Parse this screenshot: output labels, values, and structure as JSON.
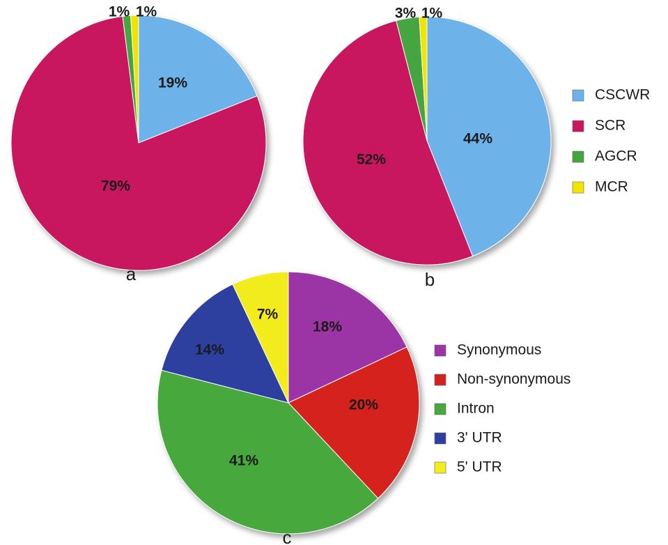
{
  "chart_data": [
    {
      "type": "pie",
      "panel_label": "a",
      "slices": [
        {
          "name": "CSCWR",
          "value": 19,
          "label": "19%",
          "color": "#6db3ea"
        },
        {
          "name": "SCR",
          "value": 79,
          "label": "79%",
          "color": "#c8175f"
        },
        {
          "name": "AGCR",
          "value": 1,
          "label": "1%",
          "color": "#45a53f"
        },
        {
          "name": "MCR",
          "value": 1,
          "label": "1%",
          "color": "#f2e300"
        }
      ]
    },
    {
      "type": "pie",
      "panel_label": "b",
      "slices": [
        {
          "name": "CSCWR",
          "value": 44,
          "label": "44%",
          "color": "#6db3ea"
        },
        {
          "name": "SCR",
          "value": 52,
          "label": "52%",
          "color": "#c8175f"
        },
        {
          "name": "AGCR",
          "value": 3,
          "label": "3%",
          "color": "#45a53f"
        },
        {
          "name": "MCR",
          "value": 1,
          "label": "1%",
          "color": "#f2e300"
        }
      ],
      "legend": {
        "position": "right",
        "entries": [
          "CSCWR",
          "SCR",
          "AGCR",
          "MCR"
        ]
      }
    },
    {
      "type": "pie",
      "panel_label": "c",
      "slices": [
        {
          "name": "Synonymous",
          "value": 18,
          "label": "18%",
          "color": "#9b34a6"
        },
        {
          "name": "Non-synonymous",
          "value": 20,
          "label": "20%",
          "color": "#d5201f"
        },
        {
          "name": "Intron",
          "value": 41,
          "label": "41%",
          "color": "#47a83c"
        },
        {
          "name": "3' UTR",
          "value": 14,
          "label": "14%",
          "color": "#2e3f9f"
        },
        {
          "name": "5' UTR",
          "value": 7,
          "label": "7%",
          "color": "#f2ec1c"
        }
      ],
      "legend": {
        "position": "right",
        "entries": [
          "Synonymous",
          "Non-synonymous",
          "Intron",
          "3' UTR",
          "5' UTR"
        ]
      }
    }
  ]
}
